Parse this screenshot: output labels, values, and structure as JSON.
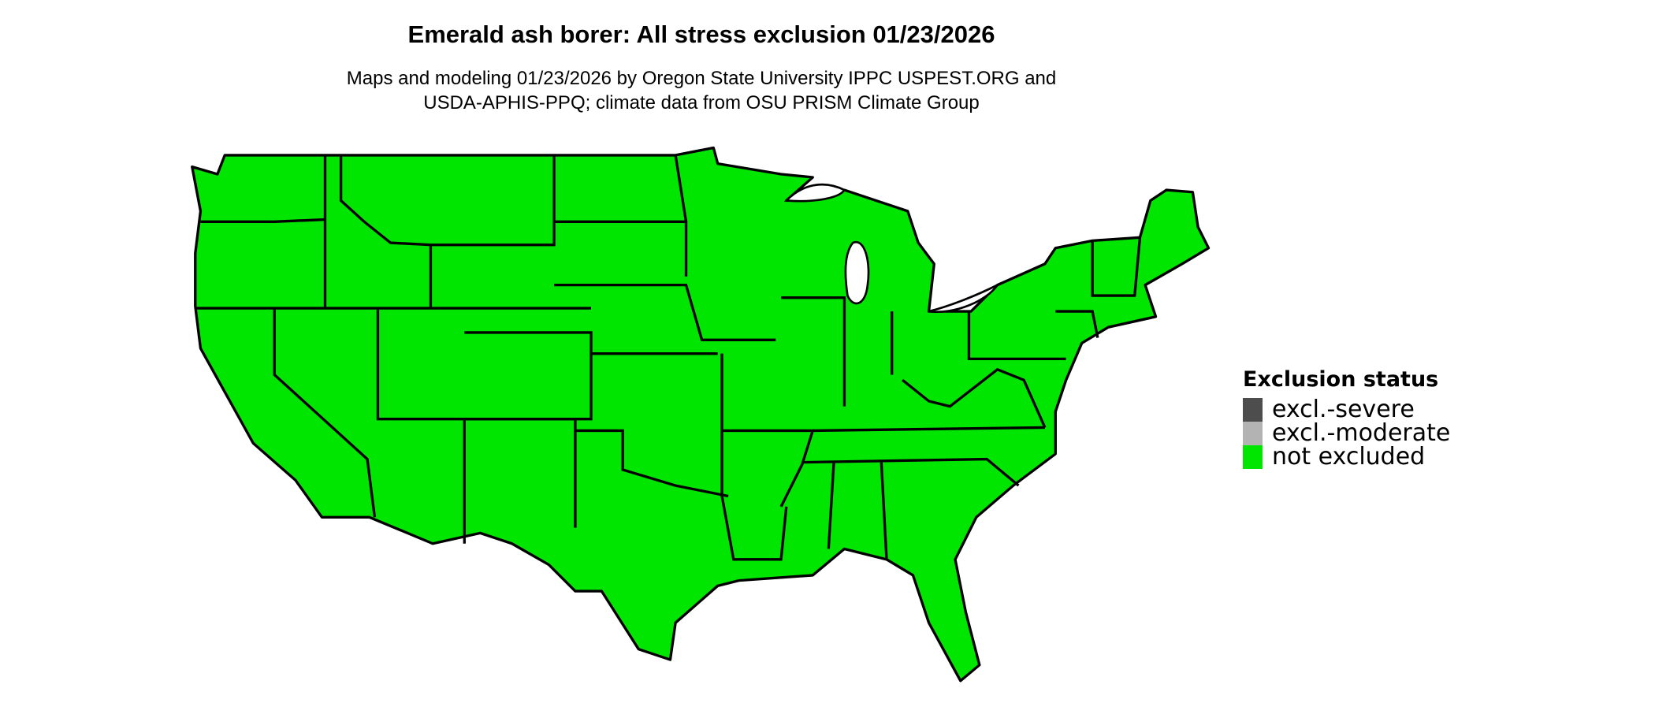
{
  "title": "Emerald ash borer: All stress exclusion 01/23/2026",
  "subtitle_lines": [
    "Maps and modeling 01/23/2026 by Oregon State University IPPC USPEST.ORG and",
    "USDA-APHIS-PPQ; climate data from OSU PRISM Climate Group"
  ],
  "map": {
    "region": "Contiguous United States",
    "fill_status": "not excluded"
  },
  "legend": {
    "title": "Exclusion status",
    "items": [
      {
        "label": "excl.-severe",
        "color": "#4d4d4d"
      },
      {
        "label": "excl.-moderate",
        "color": "#b3b3b3"
      },
      {
        "label": "not excluded",
        "color": "#00e600"
      }
    ]
  }
}
